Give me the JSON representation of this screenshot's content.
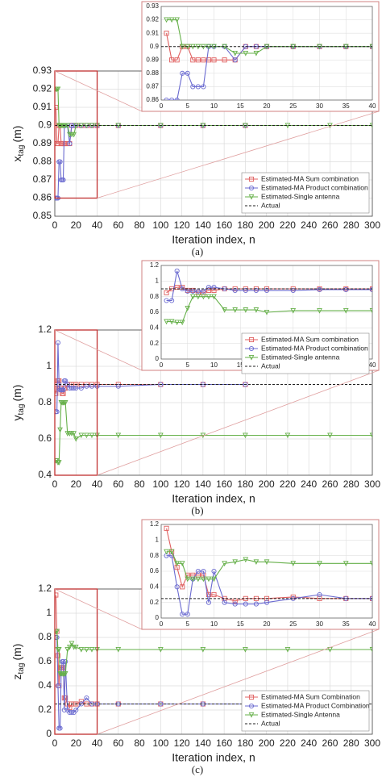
{
  "chart_data": [
    {
      "type": "line",
      "y_label": "x",
      "y_label_sub": "tag",
      "y_label_unit": "(m)",
      "x_label": "Iteration index, n",
      "caption": "(a)",
      "xlim": [
        0,
        300
      ],
      "xticks": [
        0,
        20,
        40,
        60,
        80,
        100,
        120,
        140,
        160,
        180,
        200,
        220,
        240,
        260,
        280,
        300
      ],
      "ylim": [
        0.85,
        0.93
      ],
      "yticks": [
        0.85,
        0.86,
        0.87,
        0.88,
        0.89,
        0.9,
        0.91,
        0.92,
        0.93
      ],
      "grid": true,
      "legend": "lower right",
      "inset": {
        "xlim": [
          0,
          40
        ],
        "xticks": [
          0,
          5,
          10,
          15,
          20,
          25,
          30,
          35,
          40
        ],
        "ylim": [
          0.86,
          0.93
        ],
        "yticks": [
          0.86,
          0.87,
          0.88,
          0.89,
          0.9,
          0.91,
          0.92,
          0.93
        ]
      },
      "series": [
        {
          "name": "Estimated-MA Sum combination",
          "color": "#e06060",
          "marker": "square",
          "x": [
            1,
            2,
            3,
            4,
            5,
            6,
            7,
            8,
            9,
            10,
            12,
            14,
            16,
            18,
            20,
            25,
            30,
            35,
            40,
            60,
            100,
            140,
            180
          ],
          "values": [
            0.91,
            0.89,
            0.89,
            0.9,
            0.9,
            0.89,
            0.89,
            0.89,
            0.89,
            0.89,
            0.89,
            0.89,
            0.9,
            0.9,
            0.9,
            0.9,
            0.9,
            0.9,
            0.9,
            0.9,
            0.9,
            0.9,
            0.9
          ]
        },
        {
          "name": "Estimated-MA Product combination",
          "color": "#6a6ad0",
          "marker": "circle",
          "x": [
            1,
            2,
            3,
            4,
            5,
            6,
            7,
            8,
            9,
            10,
            12,
            14,
            16,
            18,
            20,
            25,
            30,
            35,
            40,
            60,
            100,
            140,
            180
          ],
          "values": [
            0.86,
            0.86,
            0.86,
            0.88,
            0.88,
            0.87,
            0.87,
            0.87,
            0.9,
            0.9,
            0.9,
            0.89,
            0.9,
            0.9,
            0.9,
            0.9,
            0.9,
            0.9,
            0.9,
            0.9,
            0.9,
            0.9,
            0.9
          ]
        },
        {
          "name": "Estimated-Single antenna",
          "color": "#66b04a",
          "marker": "triangle",
          "x": [
            1,
            2,
            3,
            4,
            5,
            6,
            7,
            8,
            9,
            10,
            12,
            14,
            16,
            18,
            20,
            25,
            30,
            35,
            40,
            60,
            100,
            140,
            180,
            220,
            260,
            300
          ],
          "values": [
            0.92,
            0.92,
            0.92,
            0.9,
            0.9,
            0.9,
            0.9,
            0.9,
            0.9,
            0.9,
            0.9,
            0.895,
            0.895,
            0.895,
            0.9,
            0.9,
            0.9,
            0.9,
            0.9,
            0.9,
            0.9,
            0.9,
            0.9,
            0.9,
            0.9,
            0.9
          ]
        },
        {
          "name": "Actual",
          "color": "#222222",
          "dashed": true,
          "x": [
            0,
            300
          ],
          "values": [
            0.9,
            0.9
          ]
        }
      ]
    },
    {
      "type": "line",
      "y_label": "y",
      "y_label_sub": "tag",
      "y_label_unit": "(m)",
      "x_label": "Iteration index, n",
      "caption": "(b)",
      "xlim": [
        0,
        300
      ],
      "xticks": [
        0,
        20,
        40,
        60,
        80,
        100,
        120,
        140,
        160,
        180,
        200,
        220,
        240,
        260,
        280,
        300
      ],
      "ylim": [
        0.4,
        1.2
      ],
      "yticks": [
        0.4,
        0.6,
        0.8,
        1,
        1.2
      ],
      "grid": true,
      "legend": "upper right",
      "inset": {
        "xlim": [
          0,
          40
        ],
        "xticks": [
          0,
          5,
          10,
          15,
          20,
          25,
          30,
          35,
          40
        ],
        "ylim": [
          0,
          1.2
        ],
        "yticks": [
          0,
          0.2,
          0.4,
          0.6,
          0.8,
          1,
          1.2
        ]
      },
      "series": [
        {
          "name": "Estimated-MA Sum combination",
          "color": "#e06060",
          "marker": "square",
          "x": [
            1,
            2,
            3,
            4,
            5,
            6,
            7,
            8,
            9,
            10,
            12,
            14,
            16,
            18,
            20,
            25,
            30,
            35,
            40,
            60,
            100,
            140,
            180
          ],
          "values": [
            0.85,
            0.9,
            0.92,
            0.92,
            0.88,
            0.88,
            0.85,
            0.85,
            0.88,
            0.88,
            0.9,
            0.9,
            0.9,
            0.9,
            0.9,
            0.9,
            0.9,
            0.9,
            0.9,
            0.9,
            0.9,
            0.9,
            0.9
          ]
        },
        {
          "name": "Estimated-MA Product combination",
          "color": "#6a6ad0",
          "marker": "circle",
          "x": [
            1,
            2,
            3,
            4,
            5,
            6,
            7,
            8,
            9,
            10,
            12,
            14,
            16,
            18,
            20,
            25,
            30,
            35,
            40,
            60,
            100,
            140,
            180
          ],
          "values": [
            0.75,
            0.75,
            1.13,
            0.9,
            0.87,
            0.87,
            0.87,
            0.87,
            0.92,
            0.92,
            0.9,
            0.88,
            0.88,
            0.88,
            0.88,
            0.88,
            0.89,
            0.89,
            0.89,
            0.89,
            0.9,
            0.9,
            0.9
          ]
        },
        {
          "name": "Estimated-Single antenna",
          "color": "#66b04a",
          "marker": "triangle",
          "x": [
            1,
            2,
            3,
            4,
            5,
            6,
            7,
            8,
            9,
            10,
            12,
            14,
            16,
            18,
            20,
            25,
            30,
            35,
            40,
            60,
            100,
            140,
            180,
            220,
            260,
            300
          ],
          "values": [
            0.48,
            0.48,
            0.47,
            0.47,
            0.65,
            0.8,
            0.8,
            0.8,
            0.8,
            0.8,
            0.63,
            0.63,
            0.63,
            0.63,
            0.6,
            0.62,
            0.62,
            0.62,
            0.62,
            0.62,
            0.62,
            0.62,
            0.62,
            0.62,
            0.62,
            0.62
          ]
        },
        {
          "name": "Actual",
          "color": "#222222",
          "dashed": true,
          "x": [
            0,
            300
          ],
          "values": [
            0.9,
            0.9
          ]
        }
      ]
    },
    {
      "type": "line",
      "y_label": "z",
      "y_label_sub": "tag",
      "y_label_unit": "(m)",
      "x_label": "Iteration index, n",
      "caption": "(c)",
      "xlim": [
        0,
        300
      ],
      "xticks": [
        0,
        20,
        40,
        60,
        80,
        100,
        120,
        140,
        160,
        180,
        200,
        220,
        240,
        260,
        280,
        300
      ],
      "ylim": [
        0,
        1.2
      ],
      "yticks": [
        0,
        0.2,
        0.4,
        0.6,
        0.8,
        1,
        1.2
      ],
      "grid": true,
      "legend": "lower right",
      "inset": {
        "xlim": [
          0,
          40
        ],
        "xticks": [
          0,
          5,
          10,
          15,
          20,
          25,
          30,
          35,
          40
        ],
        "ylim": [
          0,
          1.2
        ],
        "yticks": [
          0,
          0.2,
          0.4,
          0.6,
          0.8,
          1,
          1.2
        ]
      },
      "series": [
        {
          "name": "Estimated-MA Sum Combination",
          "color": "#e06060",
          "marker": "square",
          "x": [
            1,
            2,
            3,
            4,
            5,
            6,
            7,
            8,
            9,
            10,
            12,
            14,
            16,
            18,
            20,
            25,
            30,
            35,
            40,
            60,
            100,
            140,
            180
          ],
          "values": [
            1.15,
            0.85,
            0.65,
            0.4,
            0.55,
            0.55,
            0.55,
            0.55,
            0.3,
            0.3,
            0.25,
            0.22,
            0.25,
            0.25,
            0.25,
            0.27,
            0.25,
            0.25,
            0.25,
            0.25,
            0.25,
            0.25,
            0.25
          ]
        },
        {
          "name": "Estimated-MA Product Combination",
          "color": "#6a6ad0",
          "marker": "circle",
          "x": [
            1,
            2,
            3,
            4,
            5,
            6,
            7,
            8,
            9,
            10,
            12,
            14,
            16,
            18,
            20,
            25,
            30,
            35,
            40,
            60,
            100,
            140,
            180
          ],
          "values": [
            0.8,
            0.8,
            0.4,
            0.05,
            0.05,
            0.5,
            0.6,
            0.6,
            0.2,
            0.6,
            0.2,
            0.18,
            0.18,
            0.18,
            0.2,
            0.25,
            0.3,
            0.25,
            0.25,
            0.25,
            0.25,
            0.25,
            0.25
          ]
        },
        {
          "name": "Estimated-Single Antenna",
          "color": "#66b04a",
          "marker": "triangle",
          "x": [
            1,
            2,
            3,
            4,
            5,
            6,
            7,
            8,
            9,
            10,
            12,
            14,
            16,
            18,
            20,
            25,
            30,
            35,
            40,
            60,
            100,
            140,
            180,
            220,
            260,
            300
          ],
          "values": [
            0.85,
            0.85,
            0.7,
            0.7,
            0.5,
            0.5,
            0.5,
            0.5,
            0.5,
            0.5,
            0.7,
            0.72,
            0.75,
            0.72,
            0.72,
            0.7,
            0.7,
            0.7,
            0.7,
            0.7,
            0.7,
            0.7,
            0.7,
            0.7,
            0.7,
            0.7
          ]
        },
        {
          "name": "Actual",
          "color": "#222222",
          "dashed": true,
          "x": [
            0,
            300
          ],
          "values": [
            0.25,
            0.25
          ]
        }
      ]
    }
  ]
}
